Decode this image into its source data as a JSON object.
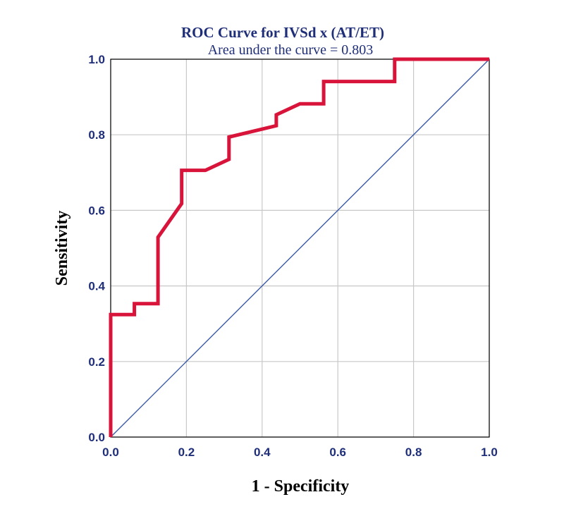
{
  "chart_data": {
    "type": "line",
    "title": "ROC Curve for IVSd x (AT/ET)",
    "subtitle": "Area under the curve = 0.803",
    "xlabel": "1 - Specificity",
    "ylabel": "Sensitivity",
    "xlim": [
      0,
      1
    ],
    "ylim": [
      0,
      1
    ],
    "xticks": [
      "0.0",
      "0.2",
      "0.4",
      "0.6",
      "0.8",
      "1.0"
    ],
    "yticks": [
      "0.0",
      "0.2",
      "0.4",
      "0.6",
      "0.8",
      "1.0"
    ],
    "grid": true,
    "series": [
      {
        "role": "roc",
        "color": "#d8143a",
        "x": [
          0,
          0,
          0.0625,
          0.0625,
          0.125,
          0.125,
          0.1875,
          0.1875,
          0.25,
          0.3125,
          0.3125,
          0.4375,
          0.4375,
          0.5,
          0.5625,
          0.5625,
          0.75,
          0.75,
          1.0
        ],
        "y": [
          0,
          0.324,
          0.324,
          0.353,
          0.353,
          0.529,
          0.618,
          0.706,
          0.706,
          0.735,
          0.794,
          0.824,
          0.853,
          0.882,
          0.882,
          0.941,
          0.941,
          1.0,
          1.0
        ]
      },
      {
        "role": "reference",
        "color": "#3b5aa8",
        "x": [
          0,
          1
        ],
        "y": [
          0,
          1
        ]
      }
    ]
  }
}
